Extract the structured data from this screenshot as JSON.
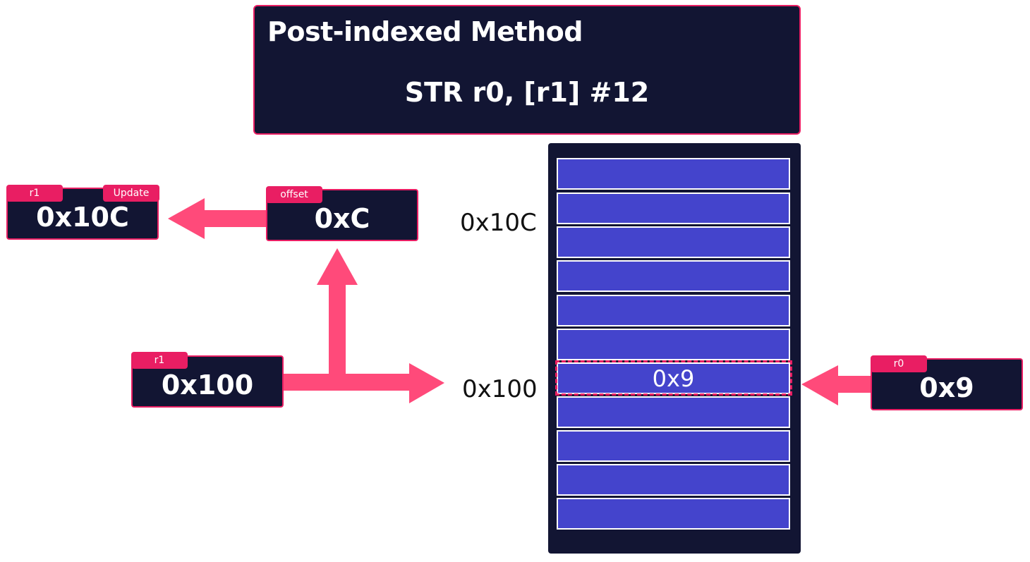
{
  "title_box": {
    "heading": "Post-indexed Method",
    "instruction": "STR r0, [r1] #12"
  },
  "registers": {
    "r1_updated": {
      "tag": "r1",
      "update_tag": "Update",
      "value": "0x10C"
    },
    "offset": {
      "tag": "offset",
      "value": "0xC"
    },
    "r1_base": {
      "tag": "r1",
      "value": "0x100"
    },
    "r0_source": {
      "tag": "r0",
      "value": "0x9"
    }
  },
  "memory": {
    "address_top": "0x10C",
    "address_base": "0x100",
    "stored_value": "0x9",
    "cell_count": 11
  },
  "colors": {
    "accent": "#e91e63",
    "arrow": "#ff4a7a",
    "panel": "#121533",
    "cell": "#4444cc"
  }
}
